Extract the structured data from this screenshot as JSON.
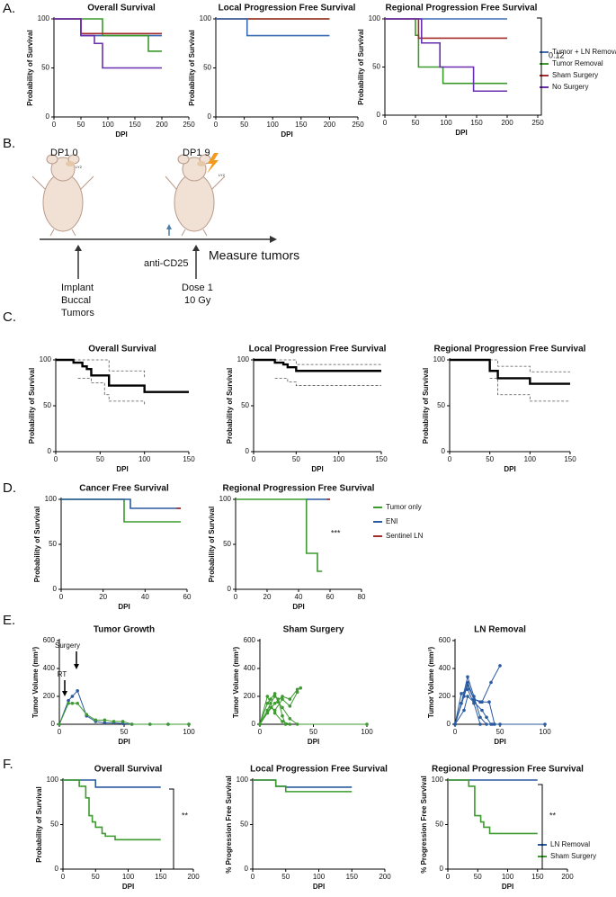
{
  "panel_labels": [
    "A.",
    "B.",
    "C.",
    "D.",
    "E.",
    "F."
  ],
  "schematic": {
    "time_labels": [
      "DP1 0",
      "DP1 9"
    ],
    "tiny": [
      "LY2",
      "LY2"
    ],
    "treatment": "anti-CD25",
    "endpoint": "Measure tumors",
    "implant": [
      "Implant",
      "Buccal",
      "Tumors"
    ],
    "dose": [
      "Dose 1",
      "10 Gy"
    ]
  },
  "chart_data": [
    {
      "type": "step",
      "title": "Overall Survival",
      "x_label": "DPI",
      "y_label": "Probability of Survival",
      "xlim": [
        0,
        250
      ],
      "ylim": [
        0,
        100
      ],
      "xticks": [
        0,
        50,
        100,
        150,
        200,
        250
      ],
      "yticks": [
        0,
        50,
        100
      ],
      "series": [
        {
          "color": "#3b6bb5",
          "x": [
            0,
            50,
            200
          ],
          "values": [
            100,
            83,
            83
          ]
        },
        {
          "color": "#3a9a2a",
          "x": [
            0,
            90,
            175,
            200
          ],
          "values": [
            100,
            83,
            67,
            67
          ]
        },
        {
          "color": "#a52a2a",
          "x": [
            0,
            50,
            200
          ],
          "values": [
            100,
            85,
            85
          ]
        },
        {
          "color": "#6a2fb0",
          "x": [
            0,
            50,
            75,
            90,
            200
          ],
          "values": [
            100,
            83,
            75,
            50,
            50
          ]
        }
      ]
    },
    {
      "type": "step",
      "title": "Local Progression Free Survival",
      "x_label": "DPI",
      "y_label": "Probability of Survival",
      "xlim": [
        0,
        250
      ],
      "ylim": [
        0,
        100
      ],
      "xticks": [
        0,
        50,
        100,
        150,
        200,
        250
      ],
      "yticks": [
        0,
        50,
        100
      ],
      "series": [
        {
          "color": "#3a9a2a",
          "x": [
            0,
            200
          ],
          "values": [
            100,
            100
          ]
        },
        {
          "color": "#a52a2a",
          "x": [
            0,
            60,
            200
          ],
          "values": [
            100,
            100,
            100
          ]
        },
        {
          "color": "#3b6bb5",
          "x": [
            0,
            55,
            200
          ],
          "values": [
            100,
            83,
            83
          ]
        }
      ]
    },
    {
      "type": "step",
      "title": "Regional Progression Free Survival",
      "x_label": "DPI",
      "y_label": "Probability of Survival",
      "xlim": [
        0,
        250
      ],
      "ylim": [
        0,
        100
      ],
      "xticks": [
        0,
        50,
        100,
        150,
        200,
        250
      ],
      "yticks": [
        0,
        50,
        100
      ],
      "annotation": "0.12",
      "series": [
        {
          "name": "Tumor + LN Removal",
          "color": "#3b6bb5",
          "x": [
            0,
            200
          ],
          "values": [
            100,
            100
          ]
        },
        {
          "name": "Tumor Removal",
          "color": "#3a9a2a",
          "x": [
            0,
            50,
            55,
            95,
            200
          ],
          "values": [
            100,
            83,
            50,
            33,
            33
          ]
        },
        {
          "name": "Sham Surgery",
          "color": "#a52a2a",
          "x": [
            0,
            55,
            200
          ],
          "values": [
            100,
            80,
            80
          ]
        },
        {
          "name": "No Surgery",
          "color": "#6a2fb0",
          "x": [
            0,
            60,
            90,
            145,
            200
          ],
          "values": [
            100,
            75,
            50,
            25,
            25
          ]
        }
      ]
    },
    {
      "type": "step",
      "title": "Overall Survival",
      "x_label": "DPI",
      "y_label": "Probability of Survival",
      "xlim": [
        0,
        150
      ],
      "ylim": [
        0,
        100
      ],
      "xticks": [
        0,
        50,
        100,
        150
      ],
      "yticks": [
        0,
        50,
        100
      ],
      "series": [
        {
          "color": "#000000",
          "x": [
            0,
            20,
            30,
            35,
            40,
            60,
            100,
            150
          ],
          "values": [
            100,
            97,
            93,
            90,
            83,
            72,
            65,
            65
          ]
        },
        {
          "color": "#555555",
          "dashed": true,
          "x": [
            20,
            60,
            100
          ],
          "values": [
            100,
            88,
            80
          ]
        },
        {
          "color": "#555555",
          "dashed": true,
          "x": [
            25,
            40,
            55,
            60,
            100
          ],
          "values": [
            80,
            75,
            62,
            55,
            50
          ]
        }
      ]
    },
    {
      "type": "step",
      "title": "Local Progression Free Survival",
      "x_label": "DPI",
      "y_label": "Probability of Survival",
      "xlim": [
        0,
        150
      ],
      "ylim": [
        0,
        100
      ],
      "xticks": [
        0,
        50,
        100,
        150
      ],
      "yticks": [
        0,
        50,
        100
      ],
      "series": [
        {
          "color": "#000000",
          "x": [
            0,
            25,
            35,
            40,
            50,
            150
          ],
          "values": [
            100,
            97,
            95,
            92,
            88,
            88
          ]
        },
        {
          "color": "#555555",
          "dashed": true,
          "x": [
            25,
            50,
            150
          ],
          "values": [
            100,
            95,
            95
          ]
        },
        {
          "color": "#555555",
          "dashed": true,
          "x": [
            25,
            40,
            50,
            150
          ],
          "values": [
            80,
            76,
            72,
            72
          ]
        }
      ]
    },
    {
      "type": "step",
      "title": "Regional Progression Free Survival",
      "x_label": "DPI",
      "y_label": "Probability of Survival",
      "xlim": [
        0,
        150
      ],
      "ylim": [
        0,
        100
      ],
      "xticks": [
        0,
        50,
        100,
        150
      ],
      "yticks": [
        0,
        50,
        100
      ],
      "series": [
        {
          "color": "#000000",
          "x": [
            0,
            50,
            60,
            100,
            150
          ],
          "values": [
            100,
            88,
            80,
            74,
            74
          ]
        },
        {
          "color": "#555555",
          "dashed": true,
          "x": [
            50,
            60,
            100,
            150
          ],
          "values": [
            100,
            93,
            87,
            87
          ]
        },
        {
          "color": "#555555",
          "dashed": true,
          "x": [
            50,
            60,
            100,
            150
          ],
          "values": [
            80,
            62,
            55,
            55
          ]
        }
      ]
    },
    {
      "type": "step",
      "title": "Cancer Free Survival",
      "x_label": "DPI",
      "y_label": "Probability of Survival",
      "xlim": [
        0,
        60
      ],
      "ylim": [
        0,
        100
      ],
      "xticks": [
        0,
        20,
        40,
        60
      ],
      "yticks": [
        0,
        50,
        100
      ],
      "series": [
        {
          "color": "#3c9a2f",
          "x": [
            0,
            30,
            57
          ],
          "values": [
            100,
            75,
            75
          ]
        },
        {
          "color": "#2a5aa0",
          "x": [
            0,
            33,
            57
          ],
          "values": [
            100,
            90,
            90
          ]
        },
        {
          "color": "#a52a2a",
          "x": [
            55,
            57
          ],
          "values": [
            90,
            90
          ]
        }
      ]
    },
    {
      "type": "step",
      "title": "Regional Progression Free Survival",
      "x_label": "DPI",
      "y_label": "Probability of Survival",
      "xlim": [
        0,
        80
      ],
      "ylim": [
        0,
        100
      ],
      "xticks": [
        0,
        20,
        40,
        60,
        80
      ],
      "yticks": [
        0,
        50,
        100
      ],
      "annotation": "***",
      "series": [
        {
          "name": "Tumor only",
          "color": "#3c9a2f",
          "x": [
            0,
            45,
            52,
            55
          ],
          "values": [
            100,
            40,
            20,
            20
          ]
        },
        {
          "name": "ENI",
          "color": "#2a5aa0",
          "x": [
            45,
            60
          ],
          "values": [
            100,
            100
          ]
        },
        {
          "name": "Sentinel LN",
          "color": "#a52a2a",
          "x": [
            58,
            60
          ],
          "values": [
            100,
            100
          ]
        }
      ]
    },
    {
      "type": "line",
      "title": "Tumor Growth",
      "x_label": "DPI",
      "y_label": "Tumor Volume (mm³)",
      "xlim": [
        0,
        100
      ],
      "ylim": [
        0,
        600
      ],
      "xticks": [
        0,
        50,
        100
      ],
      "yticks": [
        0,
        200,
        400,
        600
      ],
      "annotations": [
        "Surgery",
        "RT"
      ],
      "series": [
        {
          "color": "#2a5aa0",
          "x": [
            0,
            7,
            10,
            14,
            21,
            28,
            35,
            42,
            49,
            56,
            70,
            84,
            100
          ],
          "values": [
            0,
            170,
            200,
            240,
            60,
            20,
            10,
            10,
            5,
            0,
            0,
            0,
            0
          ]
        },
        {
          "color": "#3c9a2f",
          "x": [
            0,
            7,
            10,
            14,
            21,
            28,
            35,
            42,
            49,
            56,
            70,
            84,
            100
          ],
          "values": [
            0,
            150,
            150,
            150,
            70,
            30,
            30,
            20,
            20,
            0,
            0,
            0,
            0
          ]
        }
      ]
    },
    {
      "type": "line",
      "title": "Sham Surgery",
      "x_label": "DPI",
      "y_label": "Tumor Volume (mm³)",
      "xlim": [
        0,
        100
      ],
      "ylim": [
        0,
        600
      ],
      "xticks": [
        0,
        50,
        100
      ],
      "yticks": [
        0,
        200,
        400,
        600
      ],
      "series": [
        {
          "color": "#3c9a2f",
          "x": [
            0,
            7,
            10,
            14,
            17,
            21,
            24
          ],
          "values": [
            0,
            100,
            150,
            200,
            180,
            60,
            0
          ]
        },
        {
          "color": "#3c9a2f",
          "x": [
            0,
            7,
            10,
            14,
            17,
            21,
            28,
            35,
            100
          ],
          "values": [
            0,
            150,
            180,
            220,
            160,
            120,
            40,
            0,
            0
          ]
        },
        {
          "color": "#3c9a2f",
          "x": [
            0,
            7,
            14,
            21,
            28,
            35,
            38
          ],
          "values": [
            0,
            80,
            150,
            200,
            180,
            250,
            260
          ]
        },
        {
          "color": "#3c9a2f",
          "x": [
            0,
            10,
            14,
            21,
            28,
            35
          ],
          "values": [
            0,
            120,
            100,
            180,
            130,
            230
          ]
        },
        {
          "color": "#3c9a2f",
          "x": [
            0,
            7,
            14,
            21,
            28
          ],
          "values": [
            0,
            200,
            80,
            20,
            0
          ]
        }
      ]
    },
    {
      "type": "line",
      "title": "LN Removal",
      "x_label": "DPI",
      "y_label": "Tumor Volume (mm³)",
      "xlim": [
        0,
        100
      ],
      "ylim": [
        0,
        600
      ],
      "xticks": [
        0,
        50,
        100
      ],
      "yticks": [
        0,
        200,
        400,
        600
      ],
      "series": [
        {
          "color": "#2a5aa0",
          "x": [
            0,
            7,
            14,
            21,
            28,
            35,
            42,
            100
          ],
          "values": [
            0,
            150,
            340,
            200,
            50,
            0,
            0,
            0
          ]
        },
        {
          "color": "#2a5aa0",
          "x": [
            0,
            10,
            14,
            21,
            30,
            40,
            50
          ],
          "values": [
            0,
            200,
            280,
            180,
            160,
            300,
            420
          ]
        },
        {
          "color": "#2a5aa0",
          "x": [
            0,
            7,
            14,
            21,
            28
          ],
          "values": [
            0,
            220,
            250,
            150,
            0
          ]
        },
        {
          "color": "#2a5aa0",
          "x": [
            0,
            10,
            14,
            21,
            30,
            35,
            40
          ],
          "values": [
            0,
            100,
            200,
            160,
            100,
            50,
            0
          ]
        },
        {
          "color": "#2a5aa0",
          "x": [
            0,
            14,
            21,
            28,
            38,
            44,
            50
          ],
          "values": [
            0,
            300,
            180,
            160,
            160,
            0,
            0
          ]
        }
      ]
    },
    {
      "type": "step",
      "title": "Overall Survival",
      "x_label": "DPI",
      "y_label": "Probability of Survival",
      "xlim": [
        0,
        200
      ],
      "ylim": [
        0,
        100
      ],
      "xticks": [
        0,
        50,
        100,
        150,
        200
      ],
      "yticks": [
        0,
        50,
        100
      ],
      "annotation": "**",
      "series": [
        {
          "color": "#2a5aa0",
          "x": [
            0,
            50,
            150
          ],
          "values": [
            100,
            92,
            92
          ]
        },
        {
          "color": "#3c9a2f",
          "x": [
            0,
            25,
            35,
            40,
            45,
            50,
            60,
            65,
            80,
            150
          ],
          "values": [
            100,
            93,
            80,
            60,
            53,
            47,
            40,
            37,
            33,
            33
          ]
        }
      ]
    },
    {
      "type": "step",
      "title": "Local Progression Free Survival",
      "x_label": "DPI",
      "y_label": "% Progression Free Survival",
      "xlim": [
        0,
        200
      ],
      "ylim": [
        0,
        100
      ],
      "xticks": [
        0,
        50,
        100,
        150,
        200
      ],
      "yticks": [
        0,
        50,
        100
      ],
      "series": [
        {
          "color": "#2a5aa0",
          "x": [
            0,
            35,
            50,
            150
          ],
          "values": [
            100,
            93,
            92,
            92
          ]
        },
        {
          "color": "#3c9a2f",
          "x": [
            0,
            35,
            50,
            150
          ],
          "values": [
            100,
            93,
            87,
            87
          ]
        }
      ]
    },
    {
      "type": "step",
      "title": "Regional Progression Free Survival",
      "x_label": "DPI",
      "y_label": "% Progression Free Survival",
      "xlim": [
        0,
        200
      ],
      "ylim": [
        0,
        100
      ],
      "xticks": [
        0,
        50,
        100,
        150,
        200
      ],
      "yticks": [
        0,
        50,
        100
      ],
      "annotation": "**",
      "series": [
        {
          "name": "LN Removal",
          "color": "#2a5aa0",
          "x": [
            0,
            150
          ],
          "values": [
            100,
            100
          ]
        },
        {
          "name": "Sham Surgery",
          "color": "#3c9a2f",
          "x": [
            0,
            35,
            45,
            55,
            60,
            70,
            150
          ],
          "values": [
            100,
            93,
            60,
            53,
            47,
            40,
            40
          ]
        }
      ]
    }
  ]
}
